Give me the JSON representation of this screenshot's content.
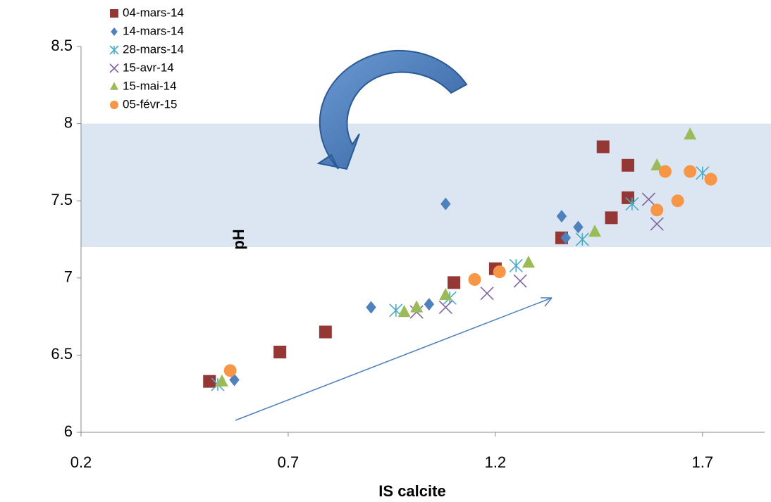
{
  "chart_data": {
    "type": "scatter",
    "x_label": "IS calcite",
    "y_label": "pH",
    "xlim": [
      0.2,
      1.85
    ],
    "ylim": [
      6,
      8.5
    ],
    "xticks": [
      0.2,
      0.7,
      1.2,
      1.7
    ],
    "yticks": [
      6,
      6.5,
      7,
      7.5,
      8,
      8.5
    ],
    "grid": false,
    "legend": "top-left",
    "shaded_band": [
      7.2,
      8.0
    ],
    "band_color": "#dce6f2",
    "series": [
      {
        "name": "04-mars-14",
        "color": "#953735",
        "marker": "square",
        "x": [
          0.51,
          0.68,
          0.79,
          1.1,
          1.2,
          1.36,
          1.46,
          1.52,
          1.52,
          1.48
        ],
        "values": [
          6.33,
          6.52,
          6.65,
          6.97,
          7.06,
          7.26,
          7.85,
          7.73,
          7.52,
          7.39
        ]
      },
      {
        "name": "14-mars-14",
        "color": "#4f81bd",
        "marker": "diamond",
        "x": [
          0.57,
          0.9,
          1.04,
          1.08,
          1.36,
          1.37,
          1.4
        ],
        "values": [
          6.34,
          6.81,
          6.83,
          7.48,
          7.4,
          7.26,
          7.33
        ]
      },
      {
        "name": "28-mars-14",
        "color": "#4bacc6",
        "marker": "asterisk",
        "x": [
          0.53,
          0.96,
          1.09,
          1.25,
          1.41,
          1.53,
          1.7
        ],
        "values": [
          6.31,
          6.79,
          6.87,
          7.08,
          7.25,
          7.48,
          7.68
        ]
      },
      {
        "name": "15-avr-14",
        "color": "#8064a2",
        "marker": "cross",
        "x": [
          1.01,
          1.08,
          1.18,
          1.26,
          1.57,
          1.59
        ],
        "values": [
          6.78,
          6.81,
          6.9,
          6.98,
          7.51,
          7.35
        ]
      },
      {
        "name": "15-mai-14",
        "color": "#9bbb59",
        "marker": "triangle",
        "x": [
          0.54,
          0.98,
          1.01,
          1.08,
          1.28,
          1.44,
          1.59,
          1.67
        ],
        "values": [
          6.33,
          6.78,
          6.81,
          6.89,
          7.1,
          7.3,
          7.73,
          7.93
        ]
      },
      {
        "name": "05-févr-15",
        "color": "#f79646",
        "marker": "circle",
        "x": [
          0.56,
          1.15,
          1.21,
          1.59,
          1.61,
          1.64,
          1.67,
          1.72
        ],
        "values": [
          6.4,
          6.99,
          7.04,
          7.44,
          7.69,
          7.5,
          7.69,
          7.64
        ]
      }
    ]
  }
}
